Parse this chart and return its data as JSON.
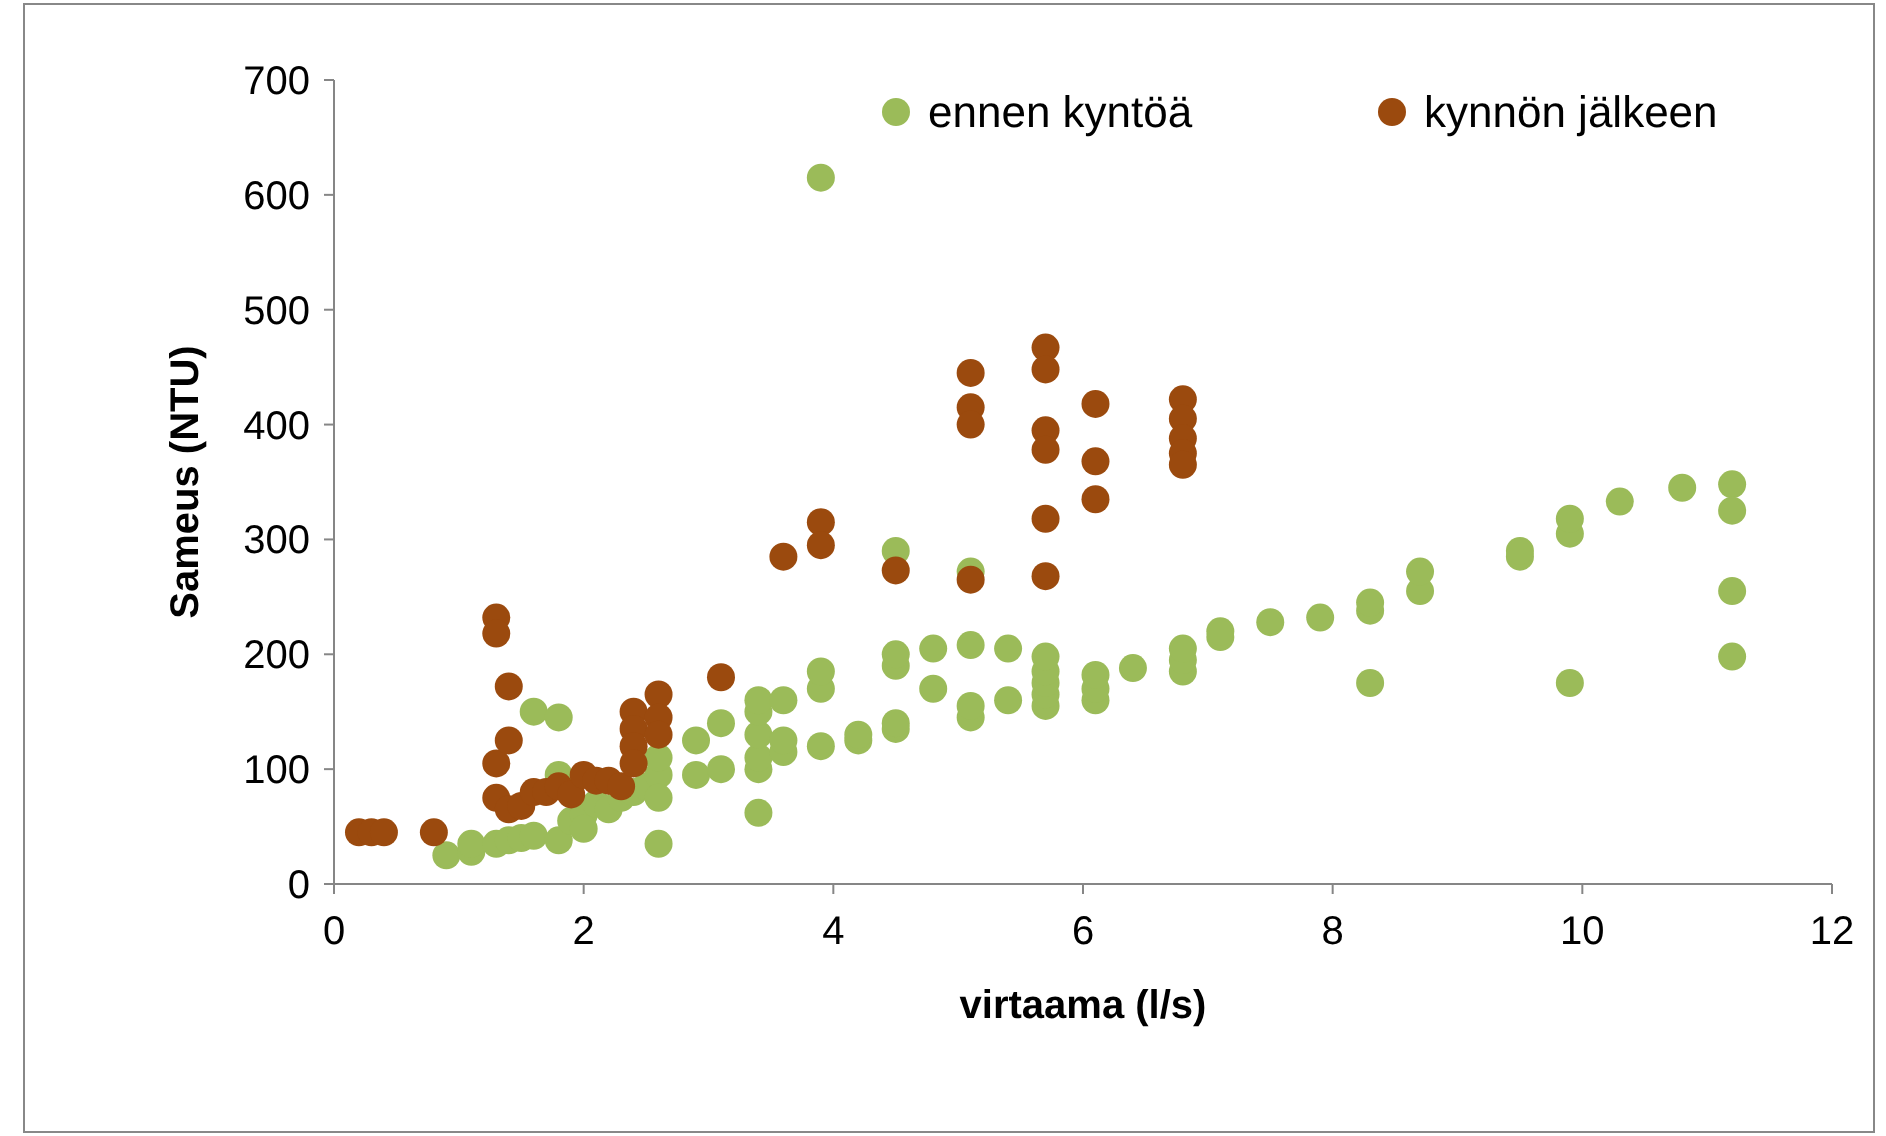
{
  "chart_data": {
    "type": "scatter",
    "xlabel": "virtaama (l/s)",
    "ylabel": "Sameus (NTU)",
    "xlim": [
      0,
      12
    ],
    "xticks": [
      0,
      2,
      4,
      6,
      8,
      10,
      12
    ],
    "ylim": [
      0,
      700
    ],
    "yticks": [
      0,
      100,
      200,
      300,
      400,
      500,
      600,
      700
    ],
    "grid": false,
    "legend": "top right",
    "marker": "circle",
    "series": [
      {
        "name": "ennen kyntöä",
        "color": "#9bbb59",
        "x": [
          3.9,
          0.9,
          1.1,
          1.1,
          1.3,
          1.4,
          1.5,
          1.6,
          1.6,
          1.8,
          1.8,
          1.8,
          1.9,
          2.0,
          2.0,
          2.1,
          2.2,
          2.3,
          2.4,
          2.5,
          2.6,
          2.6,
          2.6,
          2.6,
          2.9,
          2.9,
          3.1,
          3.1,
          3.4,
          3.4,
          3.4,
          3.4,
          3.4,
          3.4,
          3.6,
          3.6,
          3.6,
          3.9,
          3.9,
          3.9,
          4.2,
          4.2,
          4.5,
          4.5,
          4.5,
          4.5,
          4.5,
          4.8,
          4.8,
          5.1,
          5.1,
          5.1,
          5.1,
          5.4,
          5.4,
          5.7,
          5.7,
          5.7,
          5.7,
          5.7,
          6.1,
          6.1,
          6.1,
          6.4,
          6.8,
          6.8,
          6.8,
          7.1,
          7.1,
          7.5,
          7.9,
          8.3,
          8.3,
          8.3,
          8.7,
          8.7,
          9.5,
          9.5,
          9.9,
          9.9,
          9.9,
          10.3,
          10.8,
          11.2,
          11.2,
          11.2,
          11.2
        ],
        "values": [
          615,
          25,
          28,
          35,
          35,
          38,
          40,
          42,
          150,
          145,
          95,
          38,
          55,
          60,
          48,
          70,
          65,
          75,
          80,
          85,
          95,
          75,
          35,
          110,
          95,
          125,
          100,
          140,
          100,
          110,
          130,
          150,
          160,
          62,
          115,
          125,
          160,
          120,
          170,
          185,
          125,
          130,
          135,
          140,
          190,
          200,
          290,
          170,
          205,
          145,
          155,
          208,
          272,
          160,
          205,
          155,
          165,
          175,
          185,
          198,
          160,
          170,
          182,
          188,
          185,
          195,
          205,
          215,
          220,
          228,
          232,
          175,
          238,
          245,
          255,
          272,
          285,
          290,
          175,
          305,
          318,
          333,
          345,
          348,
          325,
          255,
          198
        ]
      },
      {
        "name": "kynnön jälkeen",
        "color": "#9b4a0e",
        "x": [
          0.2,
          0.3,
          0.4,
          0.8,
          1.3,
          1.3,
          1.3,
          1.3,
          1.4,
          1.4,
          1.4,
          1.5,
          1.6,
          1.7,
          1.8,
          1.9,
          2.0,
          2.1,
          2.2,
          2.3,
          2.4,
          2.4,
          2.4,
          2.4,
          2.6,
          2.6,
          2.6,
          3.1,
          3.6,
          3.9,
          3.9,
          4.5,
          5.1,
          5.1,
          5.1,
          5.1,
          5.7,
          5.7,
          5.7,
          5.7,
          5.7,
          5.7,
          6.1,
          6.1,
          6.1,
          6.8,
          6.8,
          6.8,
          6.8,
          6.8
        ],
        "values": [
          45,
          45,
          45,
          45,
          232,
          218,
          105,
          75,
          172,
          125,
          65,
          68,
          80,
          80,
          85,
          78,
          95,
          90,
          90,
          85,
          150,
          135,
          120,
          105,
          165,
          145,
          130,
          180,
          285,
          315,
          295,
          273,
          445,
          415,
          400,
          265,
          467,
          448,
          395,
          378,
          318,
          268,
          418,
          368,
          335,
          422,
          405,
          388,
          375,
          365
        ]
      }
    ]
  }
}
